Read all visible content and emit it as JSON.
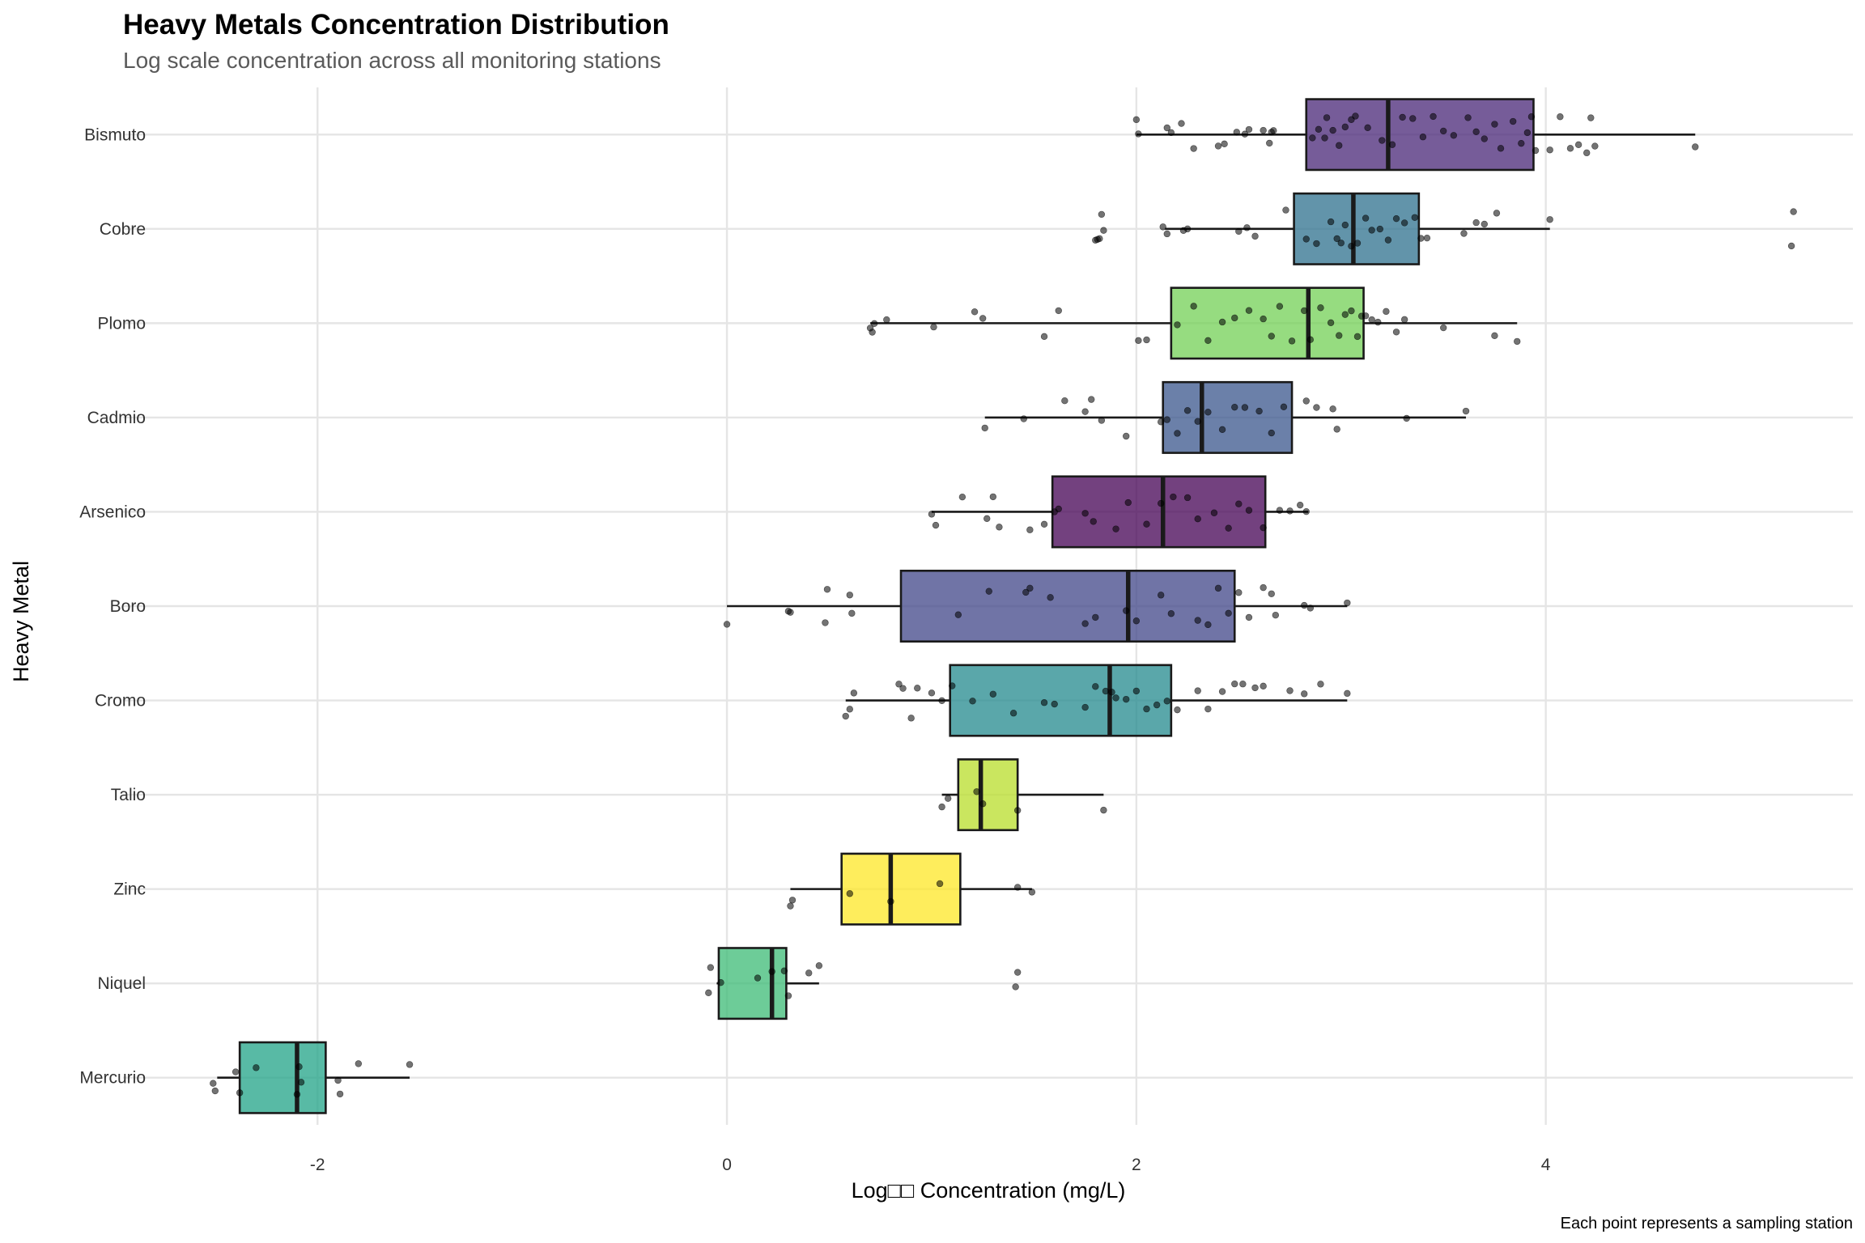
{
  "chart_data": {
    "type": "box",
    "title": "Heavy Metals Concentration Distribution",
    "subtitle": "Log scale concentration across all monitoring stations",
    "xlabel": "Log□□ Concentration (mg/L)",
    "ylabel": "Heavy Metal",
    "caption": "Each point represents a sampling station",
    "xlim": [
      -2.95,
      5.5
    ],
    "x_ticks": [
      -2,
      0,
      2,
      4
    ],
    "x_tick_labels": [
      "-2",
      "0",
      "2",
      "4"
    ],
    "grid": true,
    "legend": "none",
    "orientation": "horizontal",
    "categories": [
      "Bismuto",
      "Cobre",
      "Plomo",
      "Cadmio",
      "Arsenico",
      "Boro",
      "Cromo",
      "Talio",
      "Zinc",
      "Niquel",
      "Mercurio"
    ],
    "boxes": [
      {
        "name": "Bismuto",
        "color": "#482677",
        "whisker_low": 2.0,
        "q1": 2.83,
        "median": 3.23,
        "q3": 3.94,
        "whisker_high": 4.73,
        "points": [
          2.0,
          2.01,
          2.15,
          2.17,
          2.22,
          2.28,
          2.4,
          2.43,
          2.49,
          2.53,
          2.55,
          2.62,
          2.65,
          2.66,
          2.67,
          2.86,
          2.89,
          2.92,
          2.93,
          2.96,
          2.99,
          3.02,
          3.05,
          3.07,
          3.13,
          3.2,
          3.25,
          3.3,
          3.35,
          3.4,
          3.45,
          3.5,
          3.55,
          3.62,
          3.66,
          3.7,
          3.75,
          3.78,
          3.84,
          3.88,
          3.91,
          3.93,
          3.95,
          4.02,
          4.07,
          4.12,
          4.16,
          4.2,
          4.22,
          4.24,
          4.73
        ]
      },
      {
        "name": "Cobre",
        "color": "#2D708E",
        "whisker_low": 2.14,
        "q1": 2.77,
        "median": 3.06,
        "q3": 3.38,
        "whisker_high": 4.02,
        "points": [
          1.8,
          1.81,
          1.82,
          1.83,
          1.84,
          2.13,
          2.15,
          2.23,
          2.25,
          2.5,
          2.54,
          2.58,
          2.73,
          2.83,
          2.88,
          2.95,
          2.98,
          3.0,
          3.02,
          3.05,
          3.08,
          3.12,
          3.15,
          3.19,
          3.23,
          3.27,
          3.31,
          3.36,
          3.39,
          3.42,
          3.6,
          3.66,
          3.7,
          3.76,
          4.02,
          5.2,
          5.21
        ]
      },
      {
        "name": "Plomo",
        "color": "#73D055",
        "whisker_low": 0.7,
        "q1": 2.17,
        "median": 2.84,
        "q3": 3.11,
        "whisker_high": 3.86,
        "points": [
          0.7,
          0.71,
          0.72,
          0.78,
          1.01,
          1.21,
          1.25,
          1.55,
          1.62,
          2.01,
          2.05,
          2.2,
          2.28,
          2.35,
          2.42,
          2.48,
          2.55,
          2.62,
          2.66,
          2.7,
          2.76,
          2.82,
          2.85,
          2.9,
          2.95,
          2.99,
          3.02,
          3.05,
          3.08,
          3.1,
          3.12,
          3.15,
          3.18,
          3.22,
          3.27,
          3.31,
          3.5,
          3.75,
          3.86
        ]
      },
      {
        "name": "Cadmio",
        "color": "#39568C",
        "whisker_low": 1.26,
        "q1": 2.13,
        "median": 2.32,
        "q3": 2.76,
        "whisker_high": 3.61,
        "points": [
          1.26,
          1.45,
          1.65,
          1.75,
          1.78,
          1.83,
          1.95,
          2.12,
          2.15,
          2.2,
          2.25,
          2.3,
          2.35,
          2.42,
          2.48,
          2.53,
          2.6,
          2.66,
          2.72,
          2.83,
          2.88,
          2.96,
          2.98,
          3.32,
          3.61
        ]
      },
      {
        "name": "Arsenico",
        "color": "#440154",
        "whisker_low": 1.0,
        "q1": 1.59,
        "median": 2.13,
        "q3": 2.63,
        "whisker_high": 2.84,
        "points": [
          1.0,
          1.02,
          1.15,
          1.27,
          1.3,
          1.33,
          1.48,
          1.55,
          1.6,
          1.62,
          1.75,
          1.79,
          1.9,
          1.96,
          2.05,
          2.12,
          2.18,
          2.25,
          2.3,
          2.38,
          2.45,
          2.5,
          2.55,
          2.62,
          2.7,
          2.75,
          2.8,
          2.83
        ]
      },
      {
        "name": "Boro",
        "color": "#404688",
        "whisker_low": 0.0,
        "q1": 0.85,
        "median": 1.96,
        "q3": 2.48,
        "whisker_high": 3.03,
        "points": [
          0.0,
          0.3,
          0.31,
          0.48,
          0.49,
          0.6,
          0.61,
          1.13,
          1.28,
          1.46,
          1.48,
          1.58,
          1.75,
          1.8,
          1.95,
          2.0,
          2.12,
          2.17,
          2.3,
          2.35,
          2.4,
          2.45,
          2.5,
          2.55,
          2.62,
          2.66,
          2.68,
          2.82,
          2.85,
          3.03
        ]
      },
      {
        "name": "Cromo",
        "color": "#238A8D",
        "whisker_low": 0.58,
        "q1": 1.09,
        "median": 1.87,
        "q3": 2.17,
        "whisker_high": 3.03,
        "points": [
          0.58,
          0.6,
          0.62,
          0.84,
          0.86,
          0.9,
          0.93,
          1.0,
          1.05,
          1.1,
          1.2,
          1.3,
          1.4,
          1.55,
          1.6,
          1.75,
          1.8,
          1.85,
          1.88,
          1.9,
          1.95,
          2.0,
          2.05,
          2.1,
          2.15,
          2.2,
          2.3,
          2.35,
          2.42,
          2.48,
          2.52,
          2.58,
          2.62,
          2.75,
          2.82,
          2.9,
          3.03
        ]
      },
      {
        "name": "Talio",
        "color": "#B8DE29",
        "whisker_low": 1.05,
        "q1": 1.13,
        "median": 1.24,
        "q3": 1.42,
        "whisker_high": 1.84,
        "points": [
          1.05,
          1.08,
          1.22,
          1.25,
          1.42,
          1.84
        ]
      },
      {
        "name": "Zinc",
        "color": "#FDE725",
        "whisker_low": 0.31,
        "q1": 0.56,
        "median": 0.8,
        "q3": 1.14,
        "whisker_high": 1.49,
        "points": [
          0.31,
          0.32,
          0.6,
          0.8,
          1.04,
          1.42,
          1.49
        ]
      },
      {
        "name": "Niquel",
        "color": "#3CBB75",
        "whisker_low": -0.05,
        "q1": -0.04,
        "median": 0.22,
        "q3": 0.29,
        "whisker_high": 0.45,
        "points": [
          -0.09,
          -0.08,
          -0.03,
          0.15,
          0.22,
          0.28,
          0.3,
          0.4,
          0.45,
          1.41,
          1.42
        ]
      },
      {
        "name": "Mercurio",
        "color": "#20A387",
        "whisker_low": -2.49,
        "q1": -2.38,
        "median": -2.1,
        "q3": -1.96,
        "whisker_high": -1.55,
        "points": [
          -2.51,
          -2.5,
          -2.4,
          -2.38,
          -2.3,
          -2.1,
          -2.09,
          -2.08,
          -1.9,
          -1.89,
          -1.8,
          -1.55
        ]
      }
    ]
  }
}
